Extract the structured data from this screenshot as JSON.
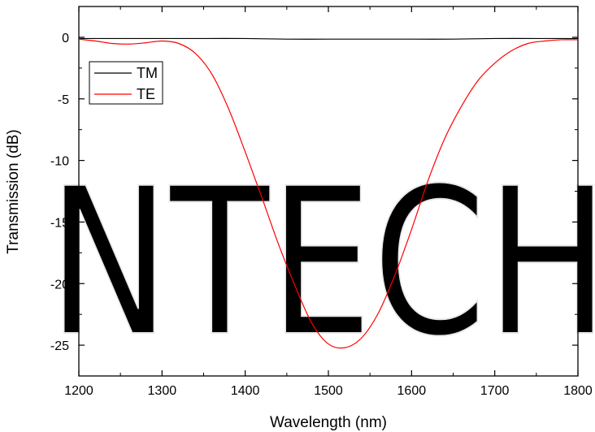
{
  "chart_data": {
    "type": "line",
    "title": "",
    "xlabel": "Wavelength (nm)",
    "ylabel": "Transmission (dB)",
    "xlim": [
      1200,
      1800
    ],
    "ylim": [
      -27.5,
      2.5
    ],
    "x_ticks": [
      1200,
      1300,
      1400,
      1500,
      1600,
      1700,
      1800
    ],
    "x_tick_labels": [
      "1200",
      "1300",
      "1400",
      "1500",
      "1600",
      "1700",
      "1800"
    ],
    "y_ticks": [
      0,
      -5,
      -10,
      -15,
      -20,
      -25
    ],
    "y_tick_labels": [
      "0",
      "-5",
      "-10",
      "-15",
      "-20",
      "-25"
    ],
    "grid": false,
    "legend_position": "top-left",
    "series": [
      {
        "name": "TM",
        "color": "#000000",
        "x": [
          1200,
          1250,
          1300,
          1350,
          1400,
          1450,
          1500,
          1550,
          1600,
          1650,
          1700,
          1750,
          1800
        ],
        "y": [
          -0.1,
          -0.1,
          -0.1,
          -0.1,
          -0.1,
          -0.15,
          -0.15,
          -0.15,
          -0.15,
          -0.15,
          -0.1,
          -0.1,
          -0.1
        ]
      },
      {
        "name": "TE",
        "color": "#ff0000",
        "x": [
          1200,
          1220,
          1240,
          1260,
          1280,
          1300,
          1320,
          1340,
          1360,
          1380,
          1400,
          1420,
          1440,
          1460,
          1480,
          1500,
          1520,
          1540,
          1560,
          1580,
          1600,
          1620,
          1640,
          1660,
          1680,
          1700,
          1720,
          1740,
          1760,
          1780,
          1800
        ],
        "y": [
          -0.15,
          -0.3,
          -0.5,
          -0.55,
          -0.45,
          -0.3,
          -0.5,
          -1.3,
          -3.0,
          -5.8,
          -9.3,
          -13.0,
          -16.8,
          -20.2,
          -23.2,
          -24.9,
          -25.2,
          -24.4,
          -22.4,
          -19.3,
          -15.6,
          -11.6,
          -8.2,
          -5.6,
          -3.5,
          -2.1,
          -1.1,
          -0.5,
          -0.3,
          -0.2,
          -0.2
        ]
      }
    ]
  },
  "watermark": {
    "text": "NTECH"
  }
}
